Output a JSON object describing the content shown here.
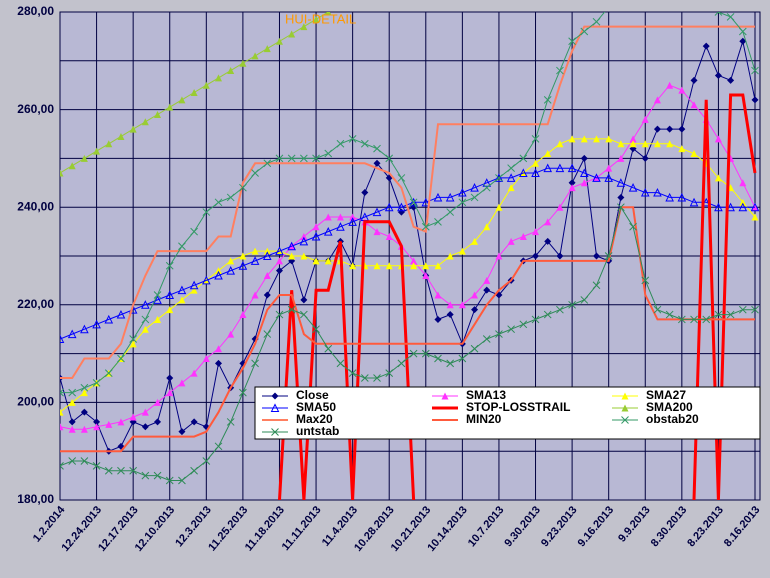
{
  "chart_data": {
    "type": "line",
    "title": "HUI-DETAIL",
    "categories": [
      "1.2.2014",
      null,
      null,
      "12.24.2013",
      null,
      null,
      "12.17.2013",
      null,
      null,
      "12.10.2013",
      null,
      null,
      "12.3.2013",
      null,
      null,
      "11.25.2013",
      null,
      null,
      "11.18.2013",
      null,
      null,
      "11.11.2013",
      null,
      null,
      "11.4.2013",
      null,
      null,
      "10.28.2013",
      null,
      null,
      "10.21.2013",
      null,
      null,
      "10.14.2013",
      null,
      null,
      "10.7.2013",
      null,
      null,
      "9.30.2013",
      null,
      null,
      "9.23.2013",
      null,
      null,
      "9.16.2013",
      null,
      null,
      "9.9.2013",
      null,
      null,
      "8.30.2013",
      null,
      null,
      "8.23.2013",
      null,
      null,
      "8.16.2013"
    ],
    "ylim": [
      180,
      280
    ],
    "yticks": [
      {
        "value": 180,
        "label": "180,00"
      },
      {
        "value": 200,
        "label": "200,00"
      },
      {
        "value": 220,
        "label": "220,00"
      },
      {
        "value": 240,
        "label": "240,00"
      },
      {
        "value": 260,
        "label": "260,00"
      },
      {
        "value": 280,
        "label": "280,00"
      }
    ],
    "yminorticks": [
      190,
      210,
      230,
      250,
      270
    ],
    "grid": true,
    "series": [
      {
        "name": "Close",
        "color": "#000080",
        "marker": "diamond",
        "width": 1,
        "values": [
          205,
          196,
          198,
          196,
          190,
          191,
          196,
          195,
          196,
          205,
          194,
          196,
          195,
          208,
          203,
          208,
          213,
          222,
          227,
          229,
          221,
          229,
          229,
          233,
          228,
          243,
          249,
          246,
          239,
          240,
          226,
          217,
          218,
          212,
          219,
          223,
          222,
          225,
          229,
          230,
          233,
          230,
          245,
          250,
          230,
          229,
          242,
          252,
          250,
          256,
          256,
          256,
          266,
          273,
          267,
          266,
          274,
          262
        ]
      },
      {
        "name": "SMA13",
        "color": "#ff33ff",
        "marker": "triangle",
        "width": 1,
        "values": [
          195,
          194.5,
          194.5,
          195,
          195.5,
          196,
          197,
          198,
          200,
          202,
          204,
          206,
          209,
          211,
          214,
          218,
          222,
          226,
          229,
          232,
          234,
          236,
          238,
          238,
          238,
          237,
          235,
          234,
          232,
          229,
          226,
          222,
          220,
          220,
          222,
          225,
          230,
          233,
          234,
          235,
          237,
          240,
          244,
          245,
          246,
          248,
          250,
          254,
          258,
          262,
          265,
          264,
          261,
          258,
          254,
          250,
          245,
          240
        ]
      },
      {
        "name": "SMA27",
        "color": "#ffff00",
        "marker": "triangle",
        "width": 1,
        "values": [
          198,
          200,
          202,
          204,
          206,
          209,
          212,
          215,
          217,
          219,
          221,
          223,
          225,
          227,
          229,
          230,
          231,
          231,
          231,
          230,
          230,
          229,
          229,
          229,
          228,
          228,
          228,
          228,
          228,
          228,
          228,
          228,
          230,
          231,
          233,
          236,
          240,
          244,
          247,
          249,
          251,
          253,
          254,
          254,
          254,
          254,
          253,
          253,
          253,
          253,
          253,
          252,
          251,
          249,
          246,
          244,
          241,
          238
        ]
      },
      {
        "name": "SMA50",
        "color": "#0000ff",
        "marker": "opentriangle",
        "width": 1,
        "values": [
          213,
          214,
          215,
          216,
          217,
          218,
          219,
          220,
          221,
          222,
          223,
          224,
          225,
          226,
          227,
          228,
          229,
          230,
          231,
          232,
          233,
          234,
          235,
          236,
          237,
          238,
          239,
          240,
          240,
          241,
          241,
          242,
          242,
          243,
          244,
          245,
          246,
          246,
          247,
          247,
          248,
          248,
          248,
          247,
          246,
          246,
          245,
          244,
          243,
          243,
          242,
          242,
          241,
          241,
          240,
          240,
          240,
          240
        ]
      },
      {
        "name": "STOP-LOSSTRAIL",
        "color": "#ff0000",
        "marker": null,
        "width": 3,
        "values": [
          null,
          null,
          null,
          null,
          null,
          null,
          null,
          null,
          null,
          null,
          null,
          null,
          null,
          null,
          null,
          null,
          null,
          null,
          180,
          223,
          180,
          223,
          223,
          233,
          180,
          237,
          237,
          237,
          232,
          180,
          null,
          null,
          null,
          null,
          null,
          null,
          null,
          null,
          null,
          null,
          null,
          null,
          null,
          null,
          null,
          null,
          null,
          null,
          null,
          null,
          null,
          null,
          180,
          262,
          180,
          263,
          263,
          247
        ]
      },
      {
        "name": "SMA200",
        "color": "#99cc33",
        "marker": "triangle",
        "width": 1,
        "values": [
          247,
          248.5,
          250,
          251.5,
          253,
          254.5,
          256,
          257.5,
          259,
          260.5,
          262,
          263.5,
          265,
          266.5,
          268,
          269.5,
          271,
          272.5,
          274,
          275.5,
          277,
          278.5,
          280,
          281.5,
          null,
          null,
          null,
          null,
          null,
          null,
          null,
          null,
          null,
          null,
          null,
          null,
          null,
          null,
          null,
          null,
          null,
          null,
          null,
          null,
          null,
          null,
          null,
          null,
          null,
          null,
          null,
          null,
          null,
          null,
          null,
          null,
          null,
          null
        ]
      },
      {
        "name": "Max20",
        "color": "#ff7f60",
        "marker": null,
        "width": 2,
        "values": [
          205,
          205,
          209,
          209,
          209,
          212,
          220,
          226,
          231,
          231,
          231,
          231,
          231,
          234,
          234,
          245,
          249,
          249,
          249,
          249,
          249,
          249,
          249,
          249,
          249,
          249,
          248,
          247,
          244,
          236,
          235,
          257,
          257,
          257,
          257,
          257,
          257,
          257,
          257,
          257,
          257,
          265,
          272,
          277,
          277,
          277,
          277,
          277,
          277,
          277,
          277,
          277,
          277,
          277,
          277,
          277,
          277,
          277
        ]
      },
      {
        "name": "MIN20",
        "color": "#ff5a3c",
        "marker": null,
        "width": 2,
        "values": [
          190,
          190,
          190,
          190,
          190,
          190,
          193,
          193,
          193,
          193,
          193,
          193,
          194,
          198,
          203,
          207,
          212,
          219,
          222,
          222,
          214,
          212,
          212,
          212,
          212,
          212,
          212,
          212,
          212,
          212,
          212,
          212,
          212,
          212,
          216,
          220,
          223,
          225,
          229,
          229,
          229,
          229,
          229,
          229,
          229,
          229,
          240,
          240,
          222,
          217,
          217,
          217,
          217,
          217,
          217,
          217,
          217,
          217
        ]
      },
      {
        "name": "obstab20",
        "color": "#339966",
        "marker": "x",
        "width": 1,
        "values": [
          202,
          202,
          203,
          204,
          206,
          209,
          213,
          217,
          222,
          228,
          232,
          235,
          239,
          241,
          242,
          244,
          247,
          249,
          250,
          250,
          250,
          250,
          251,
          253,
          254,
          253,
          252,
          250,
          246,
          241,
          236,
          237,
          239,
          241,
          242,
          244,
          246,
          248,
          250,
          254,
          262,
          268,
          274,
          276,
          278,
          281,
          282,
          284,
          282,
          281,
          281,
          281,
          282,
          281,
          280,
          279,
          276,
          268
        ]
      },
      {
        "name": "untstab",
        "color": "#2e8b57",
        "marker": "x",
        "width": 1,
        "values": [
          187,
          188,
          188,
          187,
          186,
          186,
          186,
          185,
          185,
          184,
          184,
          186,
          188,
          191,
          196,
          202,
          208,
          214,
          218,
          219,
          218,
          215,
          211,
          208,
          206,
          205,
          205,
          206,
          208,
          210,
          210,
          209,
          208,
          209,
          211,
          213,
          214,
          215,
          216,
          217,
          218,
          219,
          220,
          221,
          224,
          230,
          240,
          236,
          225,
          219,
          218,
          217,
          217,
          217,
          218,
          218,
          219,
          219
        ]
      }
    ]
  }
}
